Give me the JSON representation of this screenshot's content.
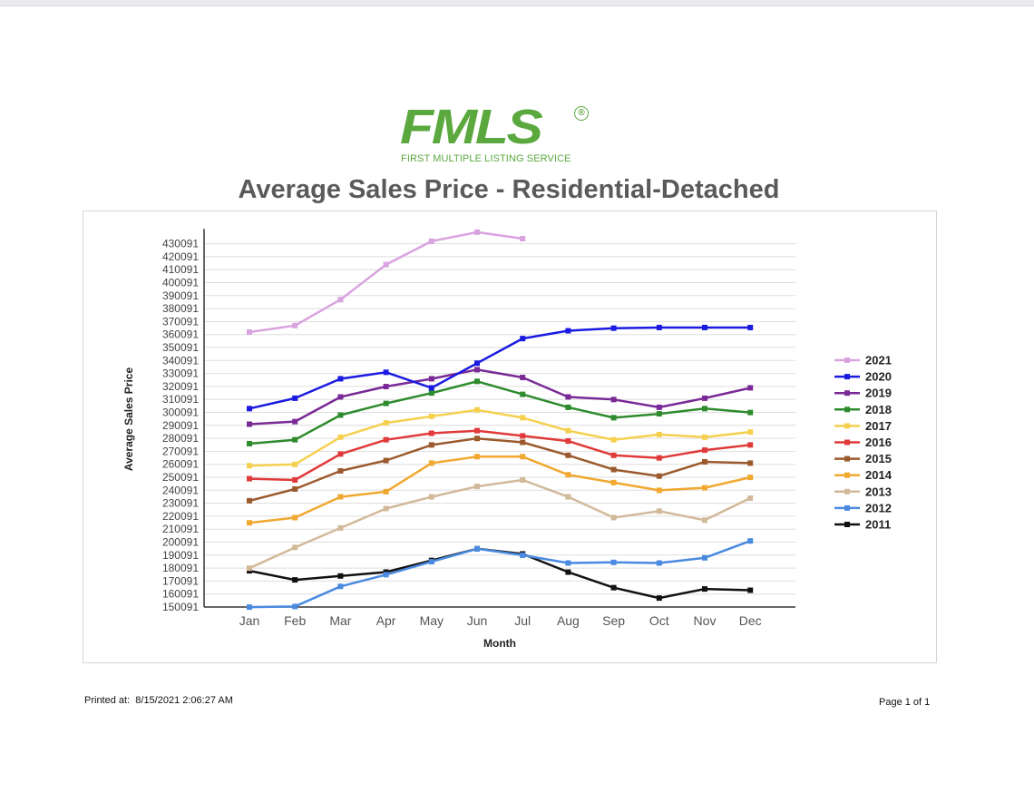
{
  "logo": {
    "wordmark": "FMLS",
    "registered": "®",
    "tagline": "FIRST MULTIPLE LISTING SERVICE"
  },
  "title": "Average Sales Price - Residential-Detached",
  "footer": {
    "printed_label": "Printed at:",
    "printed_value": "8/15/2021 2:06:27 AM",
    "page": "Page 1 of 1"
  },
  "colors": {
    "logo": "#5aa83e",
    "title": "#5a5a5a"
  },
  "chart_data": {
    "type": "line",
    "title": "Average Sales Price - Residential-Detached",
    "xlabel": "Month",
    "ylabel": "Average Sales Price",
    "categories": [
      "Jan",
      "Feb",
      "Mar",
      "Apr",
      "May",
      "Jun",
      "Jul",
      "Aug",
      "Sep",
      "Oct",
      "Nov",
      "Dec"
    ],
    "y_ticks": [
      150091,
      160091,
      170091,
      180091,
      190091,
      200091,
      210091,
      220091,
      230091,
      240091,
      250091,
      260091,
      270091,
      280091,
      290091,
      300091,
      310091,
      320091,
      330091,
      340091,
      350091,
      360091,
      370091,
      380091,
      390091,
      400091,
      410091,
      420091,
      430091
    ],
    "ylim": [
      150091,
      440091
    ],
    "grid": true,
    "legend_position": "right",
    "series": [
      {
        "name": "2021",
        "color": "#d9a3e0",
        "values": [
          362000,
          367000,
          387000,
          414000,
          432000,
          439000,
          434000,
          null,
          null,
          null,
          null,
          null
        ]
      },
      {
        "name": "2020",
        "color": "#1a1ae0",
        "values": [
          303000,
          311000,
          326000,
          331000,
          319000,
          338000,
          357000,
          363000,
          365000,
          365500,
          365500,
          365500
        ]
      },
      {
        "name": "2019",
        "color": "#7a2a96",
        "values": [
          291000,
          293000,
          312000,
          320000,
          326000,
          333000,
          327000,
          312000,
          310000,
          304000,
          311000,
          319000
        ]
      },
      {
        "name": "2018",
        "color": "#2e8b2e",
        "values": [
          276000,
          279000,
          298000,
          307000,
          315000,
          324000,
          314000,
          304000,
          296000,
          299000,
          303000,
          300000
        ]
      },
      {
        "name": "2017",
        "color": "#f5d04f",
        "values": [
          259000,
          260000,
          281000,
          292000,
          297000,
          302000,
          296000,
          286000,
          279000,
          283000,
          281000,
          285000
        ]
      },
      {
        "name": "2016",
        "color": "#e03a3a",
        "values": [
          249000,
          248000,
          268000,
          279000,
          284000,
          286000,
          282000,
          278000,
          267000,
          265000,
          271000,
          275000
        ]
      },
      {
        "name": "2015",
        "color": "#9b5a2e",
        "values": [
          232000,
          241000,
          255000,
          263000,
          275000,
          280000,
          277000,
          267000,
          256000,
          251000,
          262000,
          261000
        ]
      },
      {
        "name": "2014",
        "color": "#f0a830",
        "values": [
          215000,
          219000,
          235000,
          239000,
          261000,
          266000,
          266000,
          252000,
          246000,
          240000,
          242000,
          250000
        ]
      },
      {
        "name": "2013",
        "color": "#d2b99a",
        "values": [
          180000,
          196000,
          211000,
          226000,
          235000,
          243000,
          248000,
          235000,
          219000,
          224000,
          217000,
          234000
        ]
      },
      {
        "name": "2012",
        "color": "#4a8ae0",
        "values": [
          150000,
          150500,
          166000,
          175000,
          185000,
          195000,
          190000,
          184000,
          184500,
          184000,
          188000,
          201000
        ]
      },
      {
        "name": "2011",
        "color": "#111111",
        "values": [
          178000,
          171000,
          174000,
          177000,
          186000,
          195000,
          191000,
          177000,
          165000,
          157000,
          164000,
          163000
        ]
      }
    ]
  }
}
